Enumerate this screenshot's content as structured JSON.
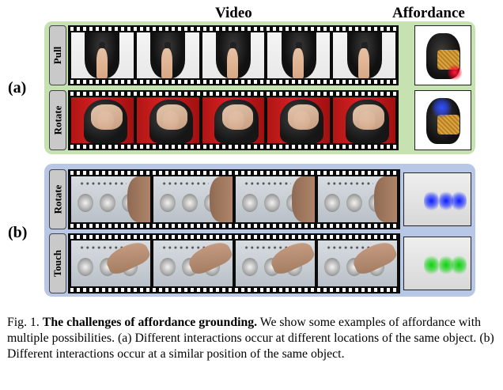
{
  "headers": {
    "video": "Video",
    "affordance": "Affordance"
  },
  "panels": {
    "a": {
      "label": "(a)",
      "rows": [
        {
          "label": "Pull"
        },
        {
          "label": "Rotate"
        }
      ]
    },
    "b": {
      "label": "(b)",
      "rows": [
        {
          "label": "Rotate"
        },
        {
          "label": "Touch"
        }
      ]
    }
  },
  "heatmap_colors": {
    "pull": "#ff1f3a",
    "rotate_a": "#3050ff",
    "rotate_b": "#0a1cff",
    "touch": "#0bd20b"
  },
  "caption": {
    "fig_number": "Fig. 1.",
    "bold_title": "The challenges of affordance grounding.",
    "body": "We show some examples of affordance with multiple possibilities. (a) Different interactions occur at different locations of the same object. (b) Different interactions occur at a similar position of the same object."
  }
}
